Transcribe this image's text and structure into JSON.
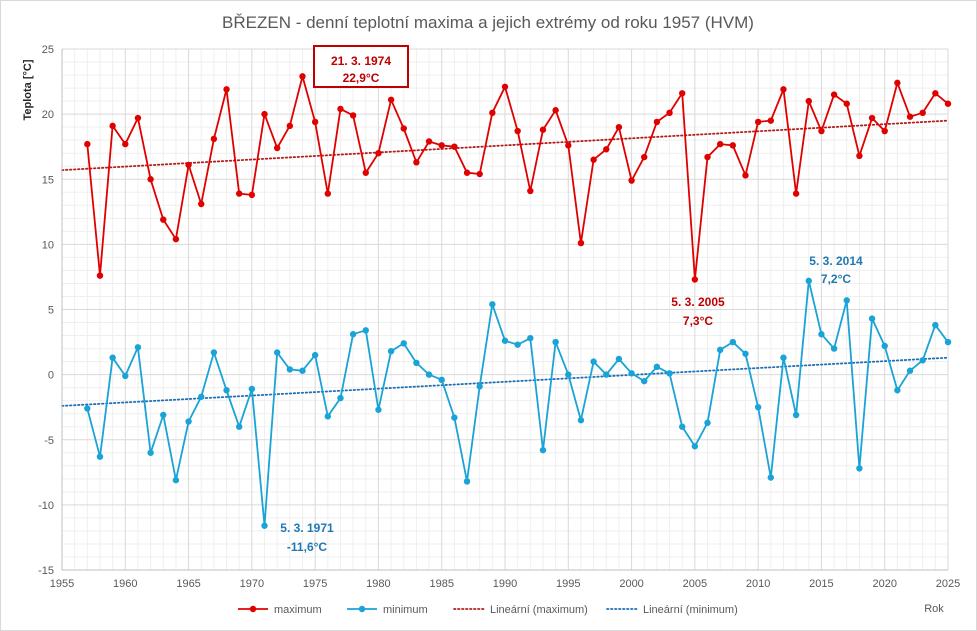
{
  "chart_data": {
    "type": "line",
    "title": "BŘEZEN - denní teplotní maxima a jejich extrémy od roku 1957 (HVM)",
    "ylabel": "Teplota [°C]",
    "xlabel": "Rok",
    "xlim": [
      1955,
      2025
    ],
    "ylim": [
      -15,
      25
    ],
    "x_ticks": [
      "1955",
      "1960",
      "1965",
      "1970",
      "1975",
      "1980",
      "1985",
      "1990",
      "1995",
      "2000",
      "2005",
      "2010",
      "2015",
      "2020",
      "2025"
    ],
    "y_ticks": [
      "-15",
      "-10",
      "-5",
      "0",
      "5",
      "10",
      "15",
      "20",
      "25"
    ],
    "grid": true,
    "legend_position": "bottom",
    "colors": {
      "maximum": "#e00000",
      "minimum": "#1aa3d6",
      "maximum_trend": "#b51c1c",
      "minimum_trend": "#1f6fb4",
      "annotation_max": "#c00000",
      "annotation_min": "#1f77b4"
    },
    "series": [
      {
        "name": "maximum",
        "x": [
          1957,
          1958,
          1959,
          1960,
          1961,
          1962,
          1963,
          1964,
          1965,
          1966,
          1967,
          1968,
          1969,
          1970,
          1971,
          1972,
          1973,
          1974,
          1975,
          1976,
          1977,
          1978,
          1979,
          1980,
          1981,
          1982,
          1983,
          1984,
          1985,
          1986,
          1987,
          1988,
          1989,
          1990,
          1991,
          1992,
          1993,
          1994,
          1995,
          1996,
          1997,
          1998,
          1999,
          2000,
          2001,
          2002,
          2003,
          2004,
          2005,
          2006,
          2007,
          2008,
          2009,
          2010,
          2011,
          2012,
          2013,
          2014,
          2015,
          2016,
          2017,
          2018,
          2019,
          2020,
          2021,
          2022,
          2023,
          2024,
          2025
        ],
        "values": [
          17.7,
          7.6,
          19.1,
          17.7,
          19.7,
          15.0,
          11.9,
          10.4,
          16.1,
          13.1,
          18.1,
          21.9,
          13.9,
          13.8,
          20.0,
          17.4,
          19.1,
          22.9,
          19.4,
          13.9,
          20.4,
          19.9,
          15.5,
          17.0,
          21.1,
          18.9,
          16.3,
          17.9,
          17.6,
          17.5,
          15.5,
          15.4,
          20.1,
          22.1,
          18.7,
          14.1,
          18.8,
          20.3,
          17.6,
          10.1,
          16.5,
          17.3,
          19.0,
          14.9,
          16.7,
          19.4,
          20.1,
          21.6,
          7.3,
          16.7,
          17.7,
          17.6,
          15.3,
          19.4,
          19.5,
          21.9,
          13.9,
          21.0,
          18.7,
          21.5,
          20.8,
          16.8,
          19.7,
          18.7,
          22.4,
          19.8,
          20.1,
          21.6,
          20.8
        ]
      },
      {
        "name": "minimum",
        "x": [
          1957,
          1958,
          1959,
          1960,
          1961,
          1962,
          1963,
          1964,
          1965,
          1966,
          1967,
          1968,
          1969,
          1970,
          1971,
          1972,
          1973,
          1974,
          1975,
          1976,
          1977,
          1978,
          1979,
          1980,
          1981,
          1982,
          1983,
          1984,
          1985,
          1986,
          1987,
          1988,
          1989,
          1990,
          1991,
          1992,
          1993,
          1994,
          1995,
          1996,
          1997,
          1998,
          1999,
          2000,
          2001,
          2002,
          2003,
          2004,
          2005,
          2006,
          2007,
          2008,
          2009,
          2010,
          2011,
          2012,
          2013,
          2014,
          2015,
          2016,
          2017,
          2018,
          2019,
          2020,
          2021,
          2022,
          2023,
          2024,
          2025
        ],
        "values": [
          -2.6,
          -6.3,
          1.3,
          -0.1,
          2.1,
          -6.0,
          -3.1,
          -8.1,
          -3.6,
          -1.7,
          1.7,
          -1.2,
          -4.0,
          -1.1,
          -11.6,
          1.7,
          0.4,
          0.3,
          1.5,
          -3.2,
          -1.8,
          3.1,
          3.4,
          -2.7,
          1.8,
          2.4,
          0.9,
          0.0,
          -0.4,
          -3.3,
          -8.2,
          -0.9,
          5.4,
          2.6,
          2.3,
          2.8,
          -5.8,
          2.5,
          0.0,
          -3.5,
          1.0,
          0.0,
          1.2,
          0.1,
          -0.5,
          0.6,
          0.1,
          -4.0,
          -5.5,
          -3.7,
          1.9,
          2.5,
          1.6,
          -2.5,
          -7.9,
          1.3,
          -3.1,
          7.2,
          3.1,
          2.0,
          5.7,
          -7.2,
          4.3,
          2.2,
          -1.2,
          0.3,
          1.1,
          3.8,
          2.5
        ]
      },
      {
        "name": "Lineární (maximum)",
        "x": [
          1955,
          2025
        ],
        "values": [
          15.7,
          19.5
        ]
      },
      {
        "name": "Lineární (minimum)",
        "x": [
          1955,
          2025
        ],
        "values": [
          -2.4,
          1.3
        ]
      }
    ],
    "annotations": [
      {
        "date": "21. 3. 1974",
        "value": "22,9°C",
        "kind": "max",
        "boxed": true
      },
      {
        "date": "5. 3. 2005",
        "value": "7,3°C",
        "kind": "max",
        "boxed": false
      },
      {
        "date": "5. 3. 2014",
        "value": "7,2°C",
        "kind": "min",
        "boxed": false
      },
      {
        "date": "5. 3. 1971",
        "value": "-11,6°C",
        "kind": "min",
        "boxed": false
      }
    ],
    "legend": [
      {
        "label": "maximum",
        "style": "solid-marker",
        "color": "#e00000"
      },
      {
        "label": "minimum",
        "style": "solid-marker",
        "color": "#1aa3d6"
      },
      {
        "label": "Lineární (maximum)",
        "style": "dotted",
        "color": "#b51c1c"
      },
      {
        "label": "Lineární (minimum)",
        "style": "dotted",
        "color": "#1f6fb4"
      }
    ]
  }
}
